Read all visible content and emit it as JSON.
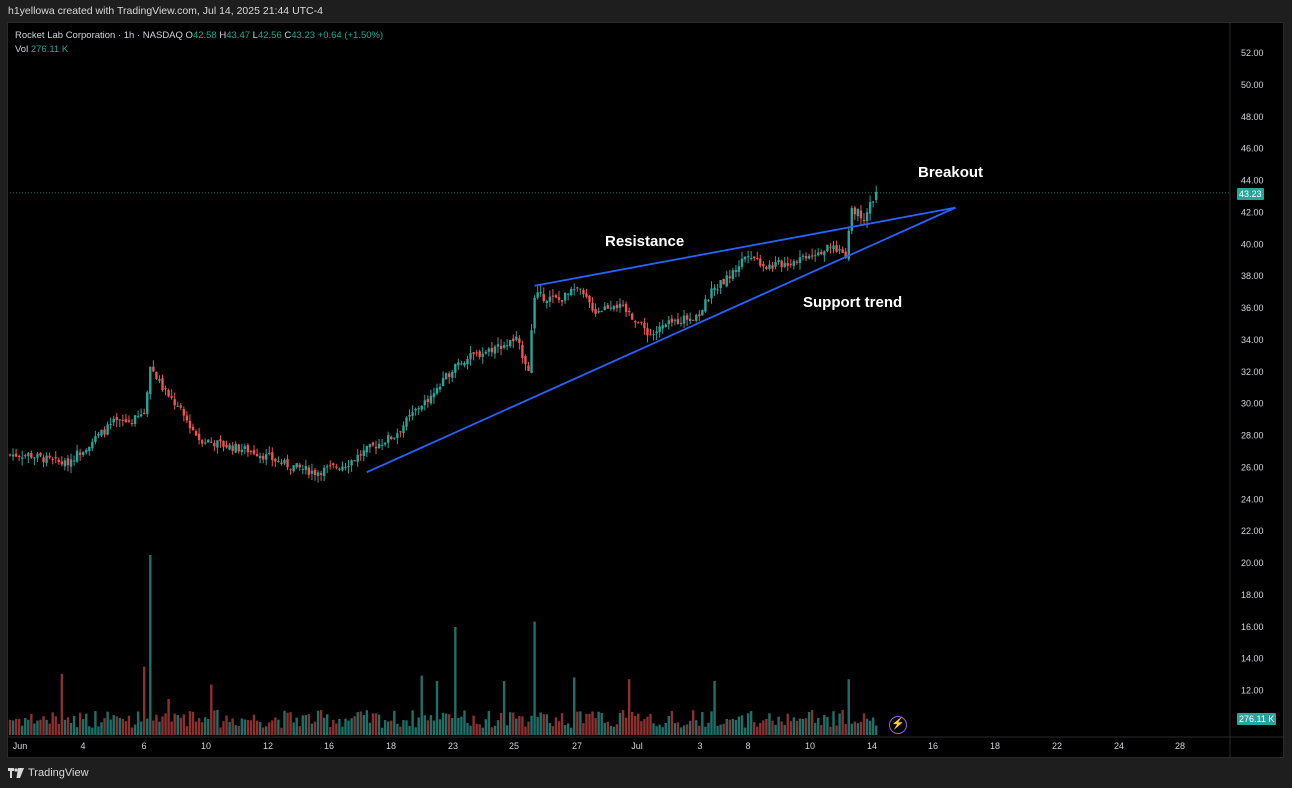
{
  "header": {
    "credit": "h1yellowa created with TradingView.com, Jul 14, 2025 21:44 UTC-4"
  },
  "legend": {
    "symbol": "Rocket Lab Corporation · 1h · NASDAQ",
    "o_label": "O",
    "o_value": "42.58",
    "h_label": "H",
    "h_value": "43.47",
    "l_label": "L",
    "l_value": "42.56",
    "c_label": "C",
    "c_value": "43.23",
    "change": "+0.64 (+1.50%)",
    "vol_label": "Vol",
    "vol_value": "276.11 K"
  },
  "annotations": {
    "breakout": "Breakout",
    "resistance": "Resistance",
    "support": "Support trend"
  },
  "price_badge": "43.23",
  "volume_badge": "276.11 K",
  "footer": {
    "brand": "TradingView"
  },
  "colors": {
    "up": "#26a69a",
    "down": "#ef5350",
    "trendline": "#2962ff",
    "background": "#000000"
  },
  "chart_data": {
    "type": "candlestick",
    "price_axis": {
      "ticks": [
        "52.00",
        "50.00",
        "48.00",
        "46.00",
        "44.00",
        "42.00",
        "40.00",
        "38.00",
        "36.00",
        "34.00",
        "32.00",
        "30.00",
        "28.00",
        "26.00",
        "24.00",
        "22.00",
        "20.00",
        "18.00",
        "16.00",
        "14.00",
        "12.00"
      ],
      "range": [
        10.6,
        53.2
      ]
    },
    "time_axis": {
      "ticks": [
        "Jun",
        "4",
        "6",
        "10",
        "12",
        "16",
        "18",
        "23",
        "25",
        "27",
        "Jul",
        "3",
        "8",
        "10",
        "14",
        "16",
        "18",
        "22",
        "24",
        "28"
      ]
    },
    "anchors": [
      {
        "t": 0,
        "price": 26.8
      },
      {
        "t": 6,
        "price": 26.8
      },
      {
        "t": 18,
        "price": 26.2
      },
      {
        "t": 26,
        "price": 27.5
      },
      {
        "t": 34,
        "price": 28.8
      },
      {
        "t": 40,
        "price": 28.9
      },
      {
        "t": 44,
        "price": 29.4
      },
      {
        "t": 46,
        "price": 32.4
      },
      {
        "t": 50,
        "price": 31.0
      },
      {
        "t": 56,
        "price": 29.5
      },
      {
        "t": 62,
        "price": 27.8
      },
      {
        "t": 70,
        "price": 27.4
      },
      {
        "t": 80,
        "price": 27.0
      },
      {
        "t": 90,
        "price": 26.2
      },
      {
        "t": 100,
        "price": 25.7
      },
      {
        "t": 110,
        "price": 26.2
      },
      {
        "t": 118,
        "price": 27.2
      },
      {
        "t": 126,
        "price": 28.0
      },
      {
        "t": 134,
        "price": 29.8
      },
      {
        "t": 140,
        "price": 30.8
      },
      {
        "t": 146,
        "price": 32.5
      },
      {
        "t": 152,
        "price": 33.0
      },
      {
        "t": 160,
        "price": 33.6
      },
      {
        "t": 166,
        "price": 34.0
      },
      {
        "t": 170,
        "price": 32.2
      },
      {
        "t": 172,
        "price": 36.8
      },
      {
        "t": 180,
        "price": 36.5
      },
      {
        "t": 186,
        "price": 37.2
      },
      {
        "t": 192,
        "price": 35.8
      },
      {
        "t": 198,
        "price": 36.3
      },
      {
        "t": 204,
        "price": 35.5
      },
      {
        "t": 210,
        "price": 34.3
      },
      {
        "t": 214,
        "price": 34.8
      },
      {
        "t": 220,
        "price": 35.3
      },
      {
        "t": 226,
        "price": 35.6
      },
      {
        "t": 230,
        "price": 37.0
      },
      {
        "t": 236,
        "price": 38.0
      },
      {
        "t": 242,
        "price": 39.5
      },
      {
        "t": 248,
        "price": 38.6
      },
      {
        "t": 256,
        "price": 38.9
      },
      {
        "t": 262,
        "price": 39.4
      },
      {
        "t": 270,
        "price": 39.8
      },
      {
        "t": 274,
        "price": 39.4
      },
      {
        "t": 276,
        "price": 42.3
      },
      {
        "t": 280,
        "price": 41.7
      },
      {
        "t": 284,
        "price": 43.23
      }
    ],
    "volume": {
      "axis_note": "relative",
      "spikes": [
        {
          "t": 17,
          "rel": 0.34
        },
        {
          "t": 44,
          "rel": 0.38
        },
        {
          "t": 46,
          "rel": 1.0
        },
        {
          "t": 52,
          "rel": 0.2
        },
        {
          "t": 66,
          "rel": 0.28
        },
        {
          "t": 135,
          "rel": 0.33
        },
        {
          "t": 140,
          "rel": 0.3
        },
        {
          "t": 146,
          "rel": 0.6
        },
        {
          "t": 162,
          "rel": 0.3
        },
        {
          "t": 172,
          "rel": 0.63
        },
        {
          "t": 185,
          "rel": 0.32
        },
        {
          "t": 203,
          "rel": 0.31
        },
        {
          "t": 231,
          "rel": 0.3
        },
        {
          "t": 275,
          "rel": 0.31
        }
      ]
    },
    "trendlines": [
      {
        "name": "resistance",
        "from": {
          "t": 172,
          "price": 37.4
        },
        "to": {
          "t": 310,
          "price": 42.3
        }
      },
      {
        "name": "support",
        "from": {
          "t": 117,
          "price": 25.7
        },
        "to": {
          "t": 310,
          "price": 42.3
        }
      }
    ],
    "last_price": 43.23
  }
}
